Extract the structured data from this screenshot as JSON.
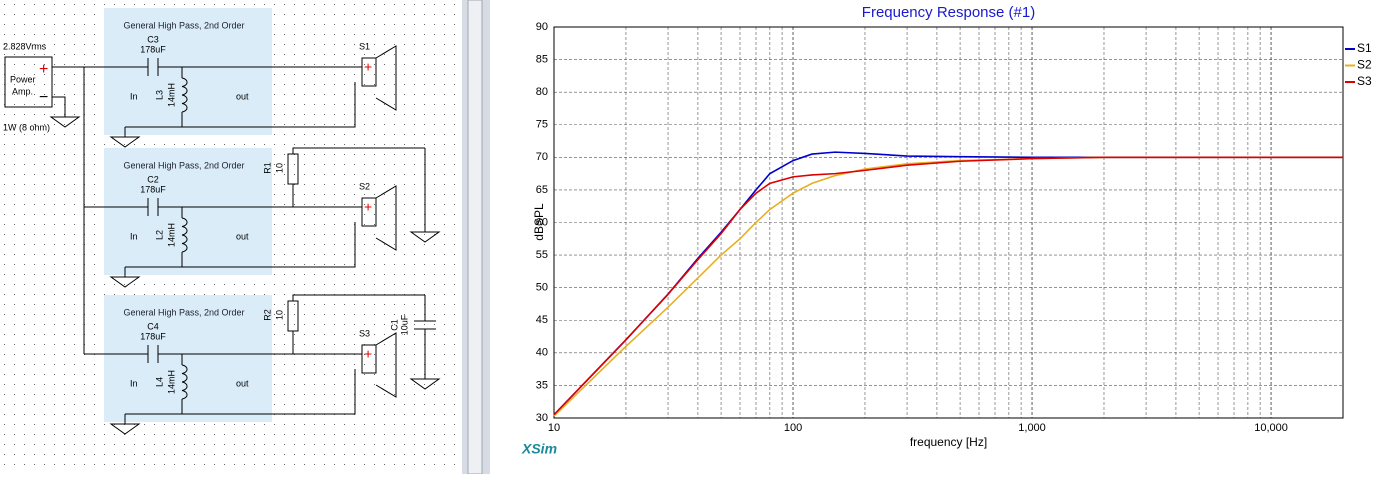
{
  "schematic": {
    "source": {
      "voltage": "2.828Vrms",
      "label": [
        "Power",
        "Amp."
      ],
      "plus": "+",
      "minus": "−",
      "power": "1W (8 ohm)"
    },
    "blocks": [
      {
        "title": "General High Pass, 2nd Order",
        "cap": {
          "name": "C3",
          "value": "178uF"
        },
        "ind": {
          "name": "L3",
          "value": "14mH"
        },
        "in": "In",
        "out": "out",
        "speaker": "S1"
      },
      {
        "title": "General High Pass, 2nd Order",
        "cap": {
          "name": "C2",
          "value": "178uF"
        },
        "ind": {
          "name": "L2",
          "value": "14mH"
        },
        "in": "In",
        "out": "out",
        "speaker": "S2",
        "resistor": {
          "name": "R1",
          "value": "10"
        }
      },
      {
        "title": "General High Pass, 2nd Order",
        "cap": {
          "name": "C4",
          "value": "178uF"
        },
        "ind": {
          "name": "L4",
          "value": "14mH"
        },
        "in": "In",
        "out": "out",
        "speaker": "S3",
        "resistor": {
          "name": "R2",
          "value": "10"
        },
        "shunt_cap": {
          "name": "C1",
          "value": "10uF"
        }
      }
    ]
  },
  "watermark": "XSim",
  "chart_data": {
    "type": "line",
    "title": "Frequency Response (#1)",
    "x_label": "frequency [Hz]",
    "y_label": "dBSPL",
    "x": [
      10,
      20,
      30,
      40,
      50,
      60,
      70,
      80,
      100,
      120,
      150,
      200,
      300,
      500,
      1000,
      2000,
      5000,
      10000,
      20000
    ],
    "series": [
      {
        "name": "S1",
        "color": "#0000cc",
        "values": [
          30.5,
          42,
          49,
          54.5,
          58.5,
          62,
          65,
          67.5,
          69.5,
          70.5,
          70.8,
          70.6,
          70.2,
          70.1,
          70,
          70,
          70,
          70,
          70
        ]
      },
      {
        "name": "S2",
        "color": "#e8b020",
        "values": [
          30.3,
          41,
          47,
          51.5,
          55,
          57.5,
          60,
          62,
          64.5,
          66,
          67.2,
          68.2,
          69,
          69.5,
          69.8,
          70,
          70,
          70,
          70
        ]
      },
      {
        "name": "S3",
        "color": "#dd0000",
        "values": [
          30.5,
          42,
          49,
          54.3,
          58.3,
          62,
          64.5,
          66,
          67,
          67.3,
          67.5,
          68,
          68.8,
          69.4,
          69.8,
          70,
          70,
          70,
          70
        ]
      }
    ],
    "xlim": [
      10,
      20000
    ],
    "xticks": [
      10,
      100,
      {
        "value": 1000,
        "label": "1,000"
      },
      {
        "value": 10000,
        "label": "10,000"
      }
    ],
    "ylim": [
      30,
      90
    ],
    "yticks": [
      30,
      35,
      40,
      45,
      50,
      55,
      60,
      65,
      70,
      75,
      80,
      85,
      90
    ],
    "log_x": true,
    "grid": true,
    "legend": "right"
  }
}
